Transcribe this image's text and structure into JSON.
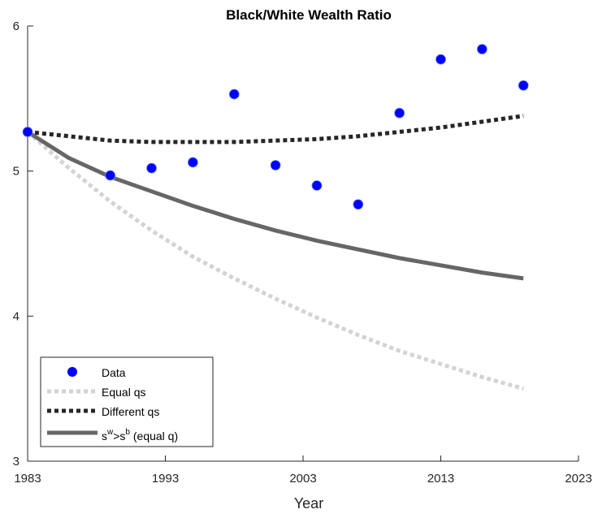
{
  "chart_data": {
    "type": "line",
    "title": "Black/White Wealth Ratio",
    "xlabel": "Year",
    "ylabel": "",
    "xlim": [
      1983,
      2023
    ],
    "ylim": [
      3,
      6
    ],
    "xticks": [
      1983,
      1993,
      2003,
      2013,
      2023
    ],
    "yticks": [
      3,
      4,
      5,
      6
    ],
    "grid": false,
    "legend_position": "bottom-left",
    "series": [
      {
        "name": "Data",
        "style": "markers",
        "color": "#0000FF",
        "x": [
          1983,
          1989,
          1992,
          1995,
          1998,
          2001,
          2004,
          2007,
          2010,
          2013,
          2016,
          2019
        ],
        "y": [
          5.27,
          4.97,
          5.02,
          5.06,
          5.53,
          5.04,
          4.9,
          4.77,
          5.4,
          5.77,
          5.84,
          5.59
        ]
      },
      {
        "name": "Equal qs",
        "style": "dotted",
        "color": "#D3D3D3",
        "x": [
          1983,
          1986,
          1989,
          1992,
          1995,
          1998,
          2001,
          2004,
          2007,
          2010,
          2013,
          2016,
          2019
        ],
        "y": [
          5.27,
          5.02,
          4.79,
          4.59,
          4.41,
          4.26,
          4.12,
          3.99,
          3.87,
          3.76,
          3.67,
          3.58,
          3.5
        ]
      },
      {
        "name": "Different qs",
        "style": "dotted",
        "color": "#262626",
        "x": [
          1983,
          1986,
          1989,
          1992,
          1995,
          1998,
          2001,
          2004,
          2007,
          2010,
          2013,
          2016,
          2019
        ],
        "y": [
          5.27,
          5.24,
          5.21,
          5.2,
          5.2,
          5.2,
          5.21,
          5.22,
          5.24,
          5.27,
          5.3,
          5.34,
          5.38
        ]
      },
      {
        "name_parts": {
          "base1": "s",
          "sup1": "w",
          "mid": ">s",
          "sup2": "b",
          "tail": " (equal q)"
        },
        "style": "solid",
        "color": "#666666",
        "x": [
          1983,
          1986,
          1989,
          1992,
          1995,
          1998,
          2001,
          2004,
          2007,
          2010,
          2013,
          2016,
          2019
        ],
        "y": [
          5.27,
          5.09,
          4.96,
          4.86,
          4.76,
          4.67,
          4.59,
          4.52,
          4.46,
          4.4,
          4.35,
          4.3,
          4.26
        ]
      }
    ]
  }
}
